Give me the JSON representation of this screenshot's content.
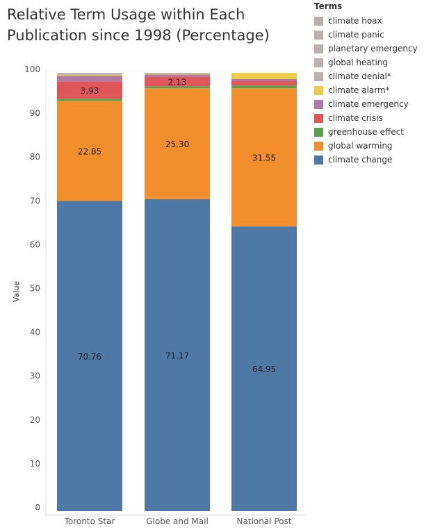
{
  "chart_data": {
    "type": "bar",
    "stacked": true,
    "title": "Relative Term Usage within Each Publication since 1998 (Percentage)",
    "xlabel": "",
    "ylabel": "Value",
    "ylim": [
      0,
      100
    ],
    "yticks": [
      0,
      10,
      20,
      30,
      40,
      50,
      60,
      70,
      80,
      90,
      100
    ],
    "categories": [
      "Toronto Star",
      "Globe and Mail",
      "National Post"
    ],
    "legend_title": "Terms",
    "legend_position": "right",
    "grid": false,
    "series": [
      {
        "name": "climate change",
        "color": "#4e79a7",
        "values": [
          70.76,
          71.17,
          64.95
        ],
        "labels": [
          "70.76",
          "71.17",
          "64.95"
        ]
      },
      {
        "name": "global warming",
        "color": "#f28e2b",
        "values": [
          22.85,
          25.3,
          31.55
        ],
        "labels": [
          "22.85",
          "25.30",
          "31.55"
        ]
      },
      {
        "name": "greenhouse effect",
        "color": "#59a14f",
        "values": [
          0.5,
          0.45,
          0.6
        ],
        "labels": [
          "",
          "",
          ""
        ]
      },
      {
        "name": "climate crisis",
        "color": "#e15759",
        "values": [
          3.93,
          2.13,
          1.0
        ],
        "labels": [
          "3.93",
          "2.13",
          ""
        ]
      },
      {
        "name": "climate emergency",
        "color": "#b07aa1",
        "values": [
          1.3,
          0.6,
          0.5
        ],
        "labels": [
          "",
          "",
          ""
        ]
      },
      {
        "name": "climate alarm*",
        "color": "#edc948",
        "values": [
          0.2,
          0.05,
          1.4
        ],
        "labels": [
          "",
          "",
          ""
        ]
      },
      {
        "name": "climate denial*",
        "color": "#bab0ac",
        "values": [
          0.2,
          0.1,
          0.0
        ],
        "labels": [
          "",
          "",
          ""
        ]
      },
      {
        "name": "global heating",
        "color": "#bab0ac",
        "values": [
          0.1,
          0.1,
          0.0
        ],
        "labels": [
          "",
          "",
          ""
        ]
      },
      {
        "name": "planetary emergency",
        "color": "#bab0ac",
        "values": [
          0.1,
          0.05,
          0.0
        ],
        "labels": [
          "",
          "",
          ""
        ]
      },
      {
        "name": "climate panic",
        "color": "#bab0ac",
        "values": [
          0.03,
          0.02,
          0.0
        ],
        "labels": [
          "",
          "",
          ""
        ]
      },
      {
        "name": "climate hoax",
        "color": "#bab0ac",
        "values": [
          0.03,
          0.03,
          0.0
        ],
        "labels": [
          "",
          "",
          ""
        ]
      }
    ]
  }
}
